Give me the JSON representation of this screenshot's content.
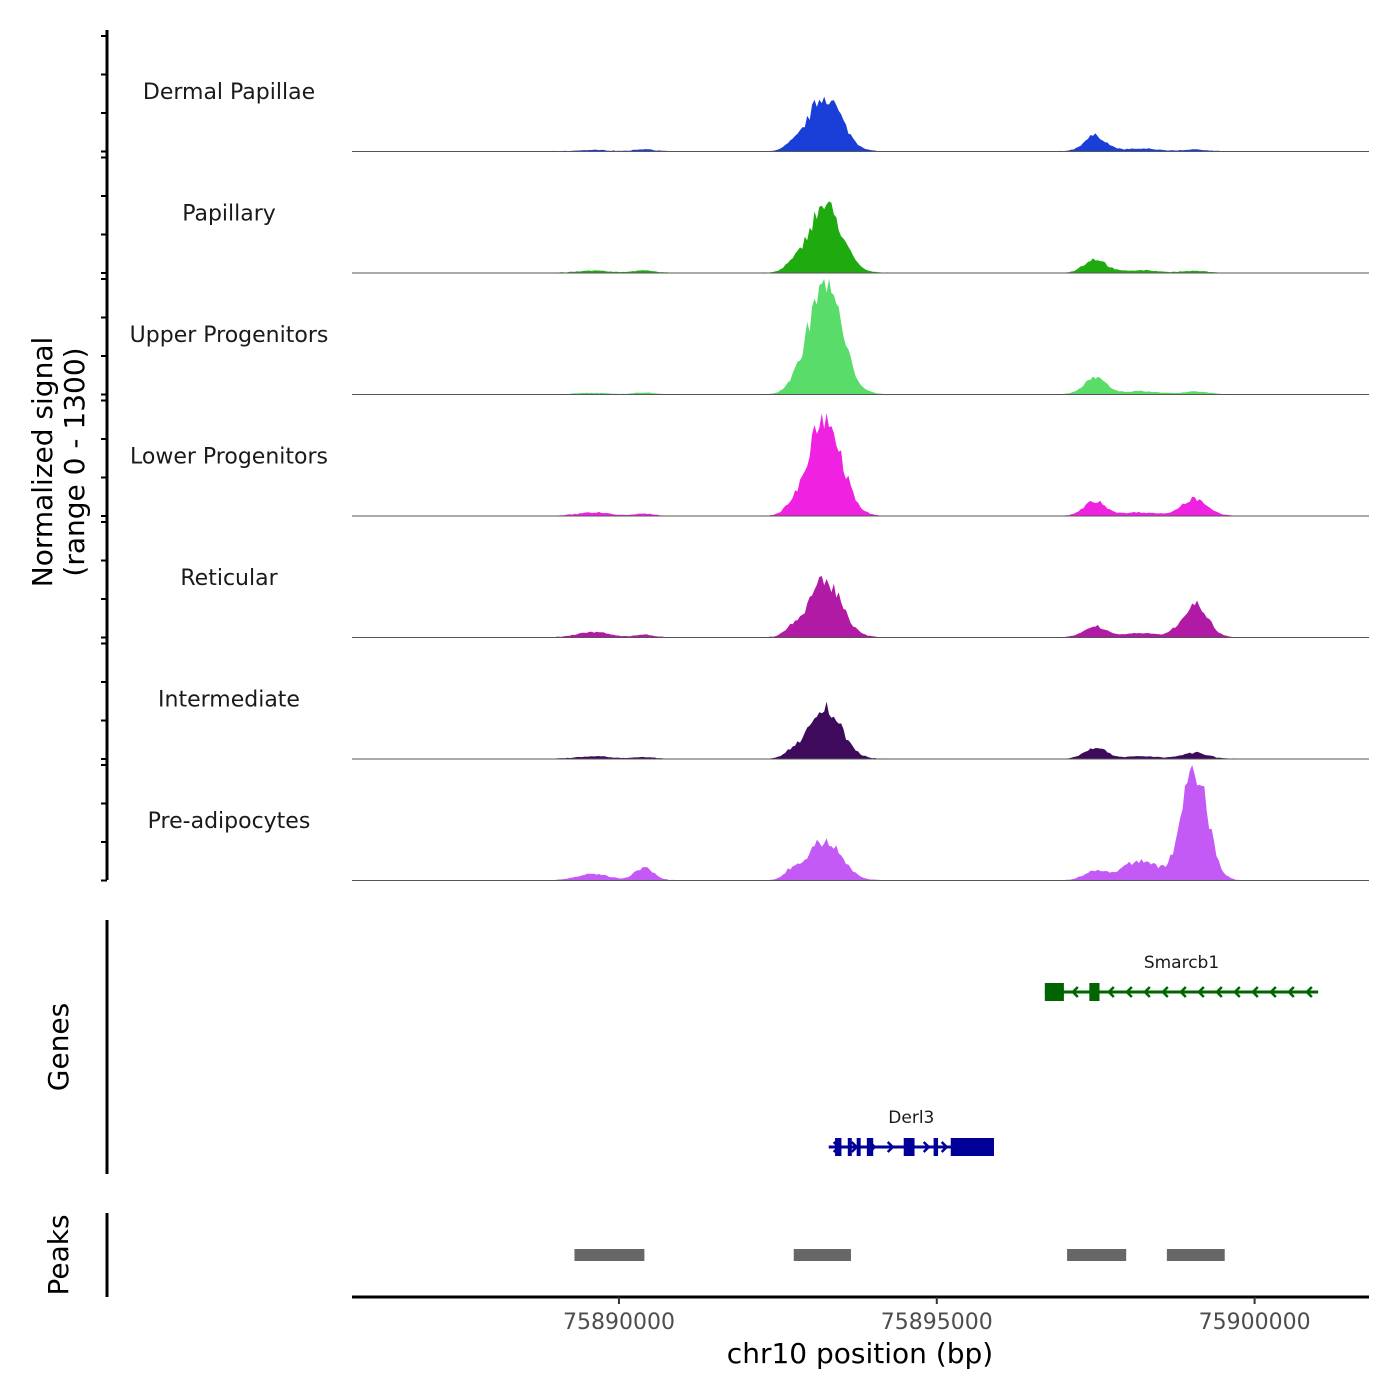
{
  "chart_data": {
    "type": "area",
    "title": "",
    "xlabel": "chr10 position (bp)",
    "ylabel_line1": "Normalized signal",
    "ylabel_line2": "(range 0 - 1300)",
    "genes_label": "Genes",
    "peaks_label": "Peaks",
    "xlim": [
      75885800,
      75901800
    ],
    "ylim": [
      0,
      1300
    ],
    "x_ticks": [
      {
        "value": 75890000,
        "label": "75890000"
      },
      {
        "value": 75895000,
        "label": "75895000"
      },
      {
        "value": 75900000,
        "label": "75900000"
      }
    ],
    "peak_shapes": [
      {
        "center": 75893240,
        "width": 260
      },
      {
        "center": 75897490,
        "width": 170
      },
      {
        "center": 75899060,
        "width": 200
      },
      {
        "center": 75890400,
        "width": 150
      },
      {
        "center": 75898200,
        "width": 280
      },
      {
        "center": 75889600,
        "width": 250
      },
      {
        "center": 75892700,
        "width": 110
      }
    ],
    "series": [
      {
        "name": "Dermal Papillae",
        "color": "#1a3fd9",
        "heights": [
          640,
          180,
          20,
          25,
          30,
          15,
          40
        ]
      },
      {
        "name": "Papillary",
        "color": "#1faa10",
        "heights": [
          780,
          160,
          20,
          30,
          30,
          25,
          50
        ]
      },
      {
        "name": "Upper Progenitors",
        "color": "#59dc6a",
        "heights": [
          1300,
          190,
          30,
          20,
          35,
          15,
          30
        ]
      },
      {
        "name": "Lower Progenitors",
        "color": "#ee22e0",
        "heights": [
          1120,
          170,
          200,
          25,
          40,
          40,
          60
        ]
      },
      {
        "name": "Reticular",
        "color": "#b01aa4",
        "heights": [
          640,
          130,
          380,
          30,
          50,
          60,
          70
        ]
      },
      {
        "name": "Intermediate",
        "color": "#3d0a5c",
        "heights": [
          580,
          130,
          70,
          20,
          30,
          30,
          60
        ]
      },
      {
        "name": "Pre-adipocytes",
        "color": "#c45af6",
        "heights": [
          460,
          110,
          1300,
          140,
          230,
          70,
          90
        ]
      }
    ],
    "genes": [
      {
        "name": "Smarcb1",
        "strand": "-",
        "start": 75896700,
        "end": 75901000,
        "color": "#006400",
        "exons": [
          [
            75896700,
            75897000
          ],
          [
            75897400,
            75897560
          ]
        ]
      },
      {
        "name": "Derl3",
        "strand": "+",
        "start": 75893300,
        "end": 75895900,
        "color": "#000099",
        "exons": [
          [
            75893400,
            75893500
          ],
          [
            75893600,
            75893650
          ],
          [
            75893740,
            75893780
          ],
          [
            75893900,
            75894000
          ],
          [
            75894480,
            75894650
          ],
          [
            75894950,
            75895020
          ],
          [
            75895220,
            75895900
          ]
        ]
      }
    ],
    "peaks": [
      {
        "start": 75889300,
        "end": 75890400
      },
      {
        "start": 75892750,
        "end": 75893650
      },
      {
        "start": 75897050,
        "end": 75897980
      },
      {
        "start": 75898620,
        "end": 75899530
      }
    ]
  }
}
